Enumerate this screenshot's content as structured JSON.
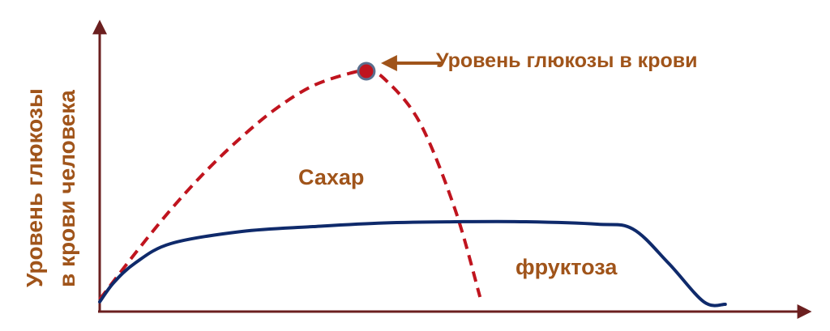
{
  "chart_data": {
    "type": "line",
    "title": "",
    "xlabel": "",
    "ylabel_lines": [
      "Уровень глюкозы",
      "в крови человека"
    ],
    "xlim": [
      0,
      100
    ],
    "ylim": [
      0,
      100
    ],
    "grid": false,
    "legend": "none",
    "series": [
      {
        "name": "Сахар",
        "style": "dashed",
        "color": "#c0141e",
        "x": [
          0,
          5,
          10,
          15,
          20,
          25,
          30,
          35,
          37.5,
          40,
          45,
          50,
          53.5
        ],
        "y": [
          5,
          24,
          42,
          58,
          72,
          84,
          93,
          98,
          99,
          96,
          78,
          42,
          6
        ]
      },
      {
        "name": "фруктоза",
        "style": "solid",
        "color": "#0f2a6b",
        "x": [
          0,
          2,
          5,
          10,
          20,
          30,
          40,
          50,
          60,
          70,
          75,
          80,
          85,
          88
        ],
        "y": [
          4,
          12,
          20,
          28,
          33,
          35,
          36.5,
          37,
          37,
          36,
          34,
          20,
          4,
          3
        ]
      }
    ],
    "annotations": [
      {
        "text": "Уровень глюкозы в крови",
        "target": "peak"
      },
      {
        "text": "Сахар"
      },
      {
        "text": "фруктоза"
      }
    ],
    "colors": {
      "axis": "#6b1f1f",
      "label": "#a0541a",
      "marker_fill": "#c0141e",
      "marker_stroke": "#5a6f8e"
    }
  }
}
